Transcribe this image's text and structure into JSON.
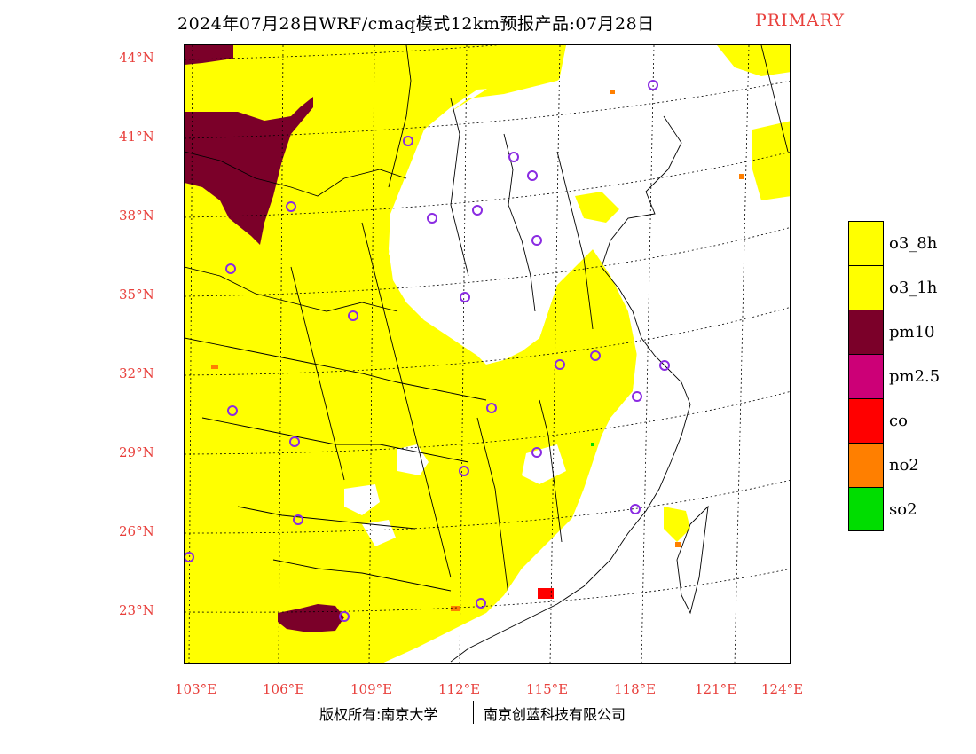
{
  "title": {
    "main": "2024年07月28日WRF/cmaq模式12km预报产品:07月28日",
    "primary_tag": "PRIMARY",
    "primary_color": "#e8403c"
  },
  "map": {
    "lat_labels": [
      "44°N",
      "41°N",
      "38°N",
      "35°N",
      "32°N",
      "29°N",
      "26°N",
      "23°N"
    ],
    "lon_labels": [
      "103°E",
      "106°E",
      "109°E",
      "112°E",
      "115°E",
      "118°E",
      "121°E",
      "124°E"
    ],
    "label_color": "#e8403c"
  },
  "legend": {
    "items": [
      {
        "label": "o3_8h",
        "color": "#ffff00"
      },
      {
        "label": "o3_1h",
        "color": "#ffff00"
      },
      {
        "label": "pm10",
        "color": "#7b0029"
      },
      {
        "label": "pm2.5",
        "color": "#cc0077"
      },
      {
        "label": "co",
        "color": "#ff0000"
      },
      {
        "label": "no2",
        "color": "#ff7f00"
      },
      {
        "label": "so2",
        "color": "#00dd00"
      }
    ]
  },
  "footer": {
    "left": "版权所有:南京大学",
    "right": "南京创蓝科技有限公司"
  },
  "colors": {
    "o3": "#ffff00",
    "pm10": "#7b0029",
    "no2": "#ff7f00",
    "co": "#ff0000",
    "so2": "#00dd00",
    "city_marker": "#8a2be2"
  }
}
